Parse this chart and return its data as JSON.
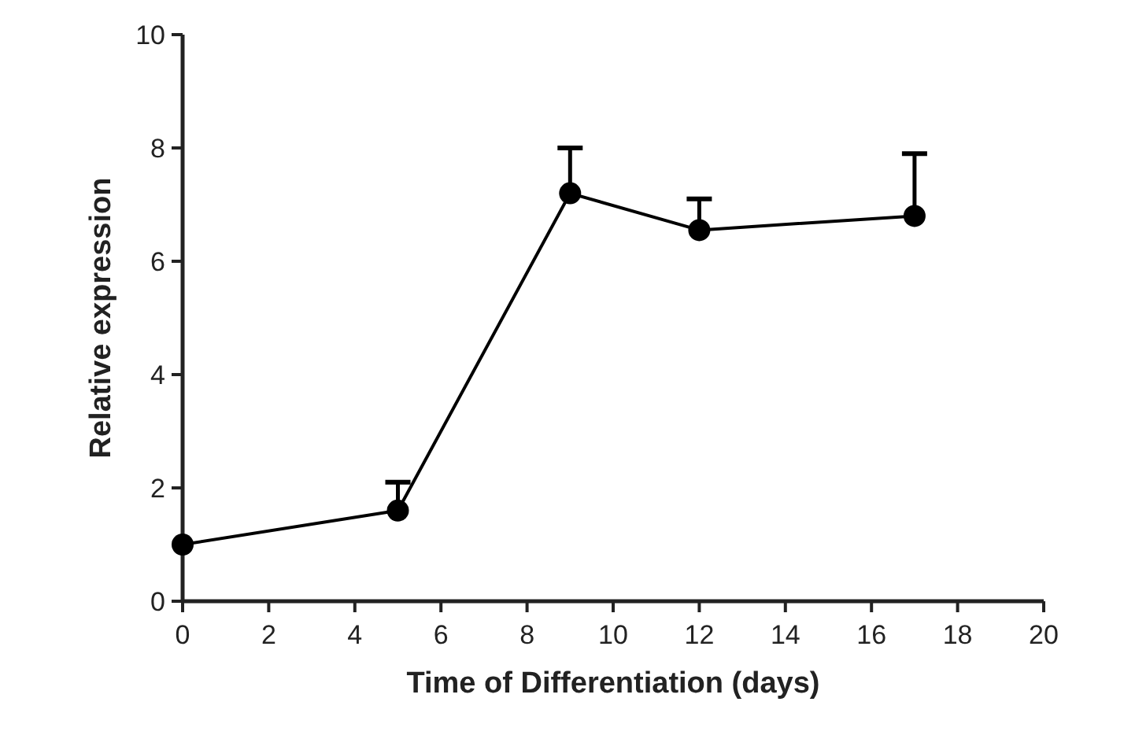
{
  "chart_data": {
    "type": "line",
    "xlabel": "Time of Differentiation (days)",
    "ylabel": "Relative expression",
    "x": [
      0,
      5,
      9,
      12,
      17
    ],
    "values": [
      1.0,
      1.6,
      7.2,
      6.55,
      6.8
    ],
    "errors": [
      null,
      [
        1.6,
        2.1
      ],
      [
        7.2,
        8.0
      ],
      [
        6.55,
        7.1
      ],
      [
        6.8,
        7.9
      ]
    ],
    "color": "#000000",
    "marker": "circle",
    "line_style": "solid",
    "xlim": [
      0,
      20
    ],
    "xticks": [
      0,
      2,
      4,
      6,
      8,
      10,
      12,
      14,
      16,
      18,
      20
    ],
    "ylim": [
      0,
      10
    ],
    "yticks": [
      0,
      2,
      4,
      6,
      8,
      10
    ],
    "grid": false
  }
}
